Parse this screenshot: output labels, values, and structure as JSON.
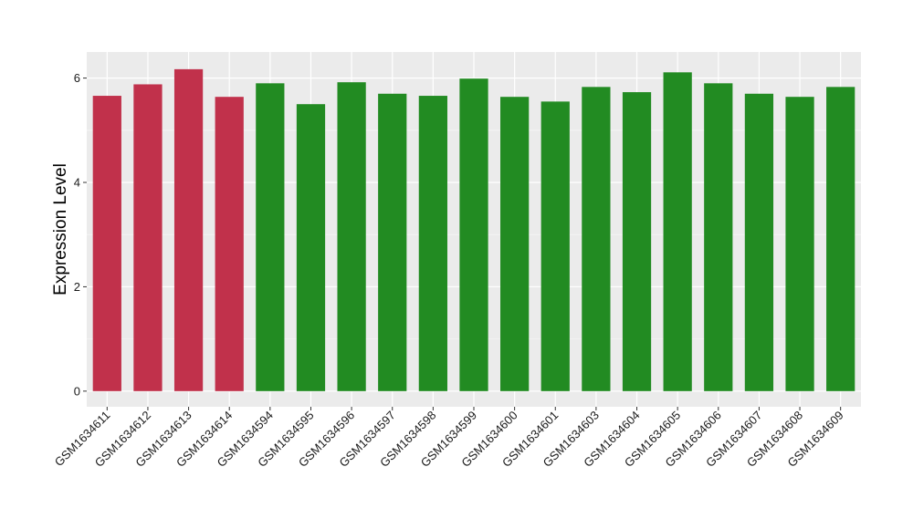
{
  "chart_data": {
    "type": "bar",
    "title": "",
    "xlabel": "",
    "ylabel": "Expression Level",
    "ylim": [
      -0.3,
      6.5
    ],
    "yticks": [
      0,
      2,
      4,
      6
    ],
    "grid": true,
    "background": "#ebebeb",
    "categories": [
      "GSM1634611",
      "GSM1634612",
      "GSM1634613",
      "GSM1634614",
      "GSM1634594",
      "GSM1634595",
      "GSM1634596",
      "GSM1634597",
      "GSM1634598",
      "GSM1634599",
      "GSM1634600",
      "GSM1634601",
      "GSM1634603",
      "GSM1634604",
      "GSM1634605",
      "GSM1634606",
      "GSM1634607",
      "GSM1634608",
      "GSM1634609"
    ],
    "values": [
      5.66,
      5.88,
      6.17,
      5.64,
      5.9,
      5.5,
      5.92,
      5.7,
      5.66,
      5.99,
      5.64,
      5.55,
      5.83,
      5.73,
      6.11,
      5.9,
      5.7,
      5.64,
      5.83
    ],
    "bar_colors": [
      "#c1314b",
      "#c1314b",
      "#c1314b",
      "#c1314b",
      "#228b22",
      "#228b22",
      "#228b22",
      "#228b22",
      "#228b22",
      "#228b22",
      "#228b22",
      "#228b22",
      "#228b22",
      "#228b22",
      "#228b22",
      "#228b22",
      "#228b22",
      "#228b22",
      "#228b22"
    ]
  }
}
